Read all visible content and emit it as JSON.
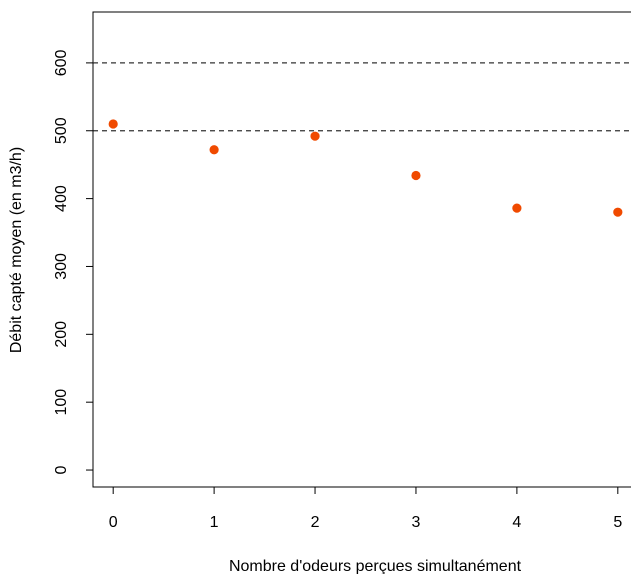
{
  "chart_data": {
    "type": "scatter",
    "title": "",
    "xlabel": "Nombre d'odeurs perçues simultanément",
    "ylabel": "Débit capté moyen (en m3/h)",
    "x": [
      0,
      1,
      2,
      3,
      4,
      5
    ],
    "y": [
      510,
      472,
      492,
      434,
      386,
      380
    ],
    "xlim": [
      -0.2,
      5.2
    ],
    "ylim": [
      -25,
      675
    ],
    "x_ticks": [
      "0",
      "1",
      "2",
      "3",
      "4",
      "5"
    ],
    "y_ticks": [
      "0",
      "100",
      "200",
      "300",
      "400",
      "500",
      "600"
    ],
    "reference_lines": [
      500,
      600
    ],
    "point_color": "#f04a00",
    "grid": false,
    "legend": "none"
  }
}
